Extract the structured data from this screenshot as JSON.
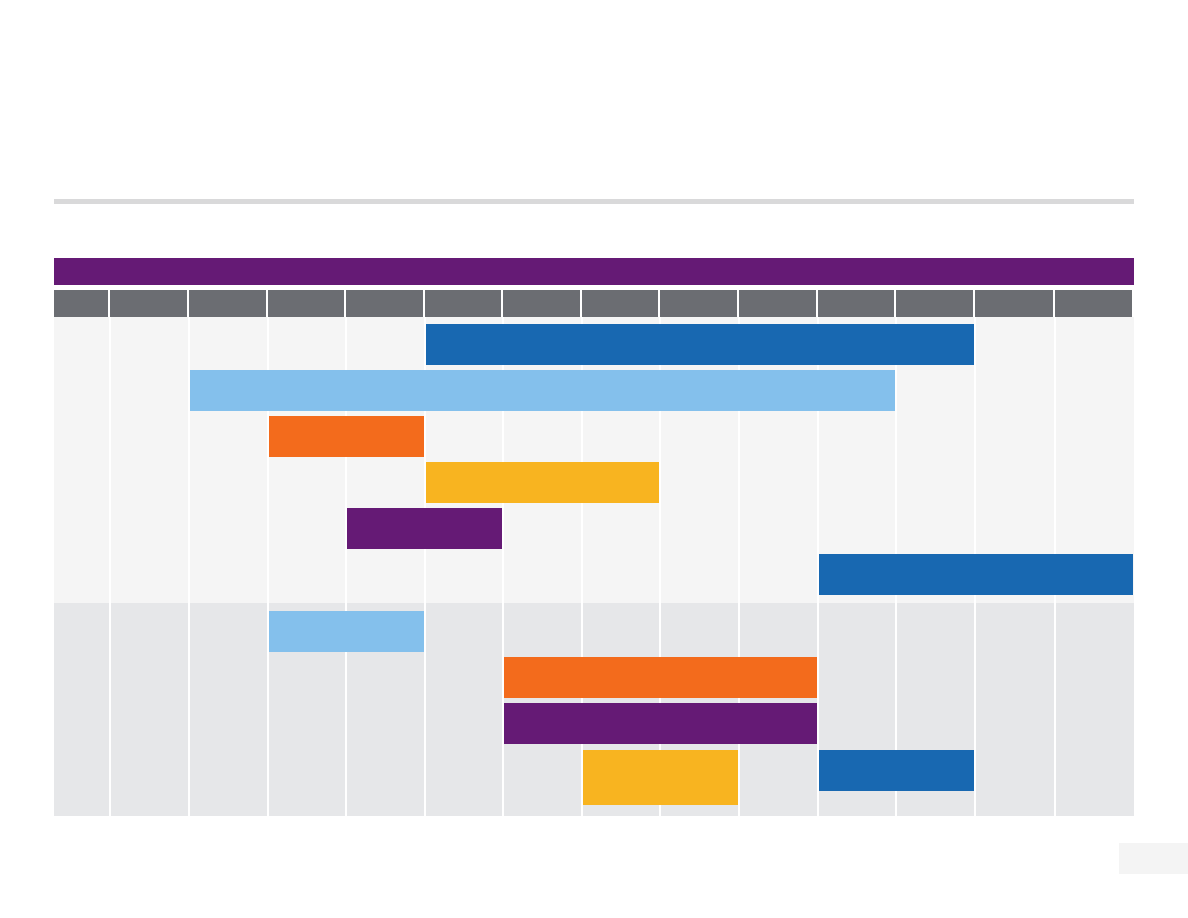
{
  "chart_data": {
    "type": "gantt",
    "title": "",
    "header_band_color": "#651a75",
    "column_header_color": "#6b6d72",
    "periods": [
      "",
      "",
      "",
      "",
      "",
      "",
      "",
      "",
      "",
      "",
      "",
      "",
      "",
      ""
    ],
    "sections": [
      {
        "name": "",
        "background": "#f5f5f5"
      },
      {
        "name": "",
        "background": "#e6e7e9"
      }
    ],
    "tasks": [
      {
        "section": 0,
        "row": 0,
        "start": 5,
        "end": 12,
        "color": "#1868b1"
      },
      {
        "section": 0,
        "row": 1,
        "start": 2,
        "end": 11,
        "color": "#84c0ec"
      },
      {
        "section": 0,
        "row": 2,
        "start": 3,
        "end": 5,
        "color": "#f36b1c"
      },
      {
        "section": 0,
        "row": 3,
        "start": 5,
        "end": 8,
        "color": "#f8b420"
      },
      {
        "section": 0,
        "row": 4,
        "start": 4,
        "end": 6,
        "color": "#651a75"
      },
      {
        "section": 0,
        "row": 5,
        "start": 10,
        "end": 14,
        "color": "#1868b1"
      },
      {
        "section": 1,
        "row": 0,
        "start": 3,
        "end": 5,
        "color": "#84c0ec"
      },
      {
        "section": 1,
        "row": 1,
        "start": 6,
        "end": 10,
        "color": "#f36b1c"
      },
      {
        "section": 1,
        "row": 2,
        "start": 6,
        "end": 10,
        "color": "#651a75"
      },
      {
        "section": 1,
        "row": 3,
        "start": 7,
        "end": 9,
        "color": "#f8b420"
      },
      {
        "section": 1,
        "row": 3,
        "start": 10,
        "end": 12,
        "color": "#1868b1"
      }
    ]
  }
}
